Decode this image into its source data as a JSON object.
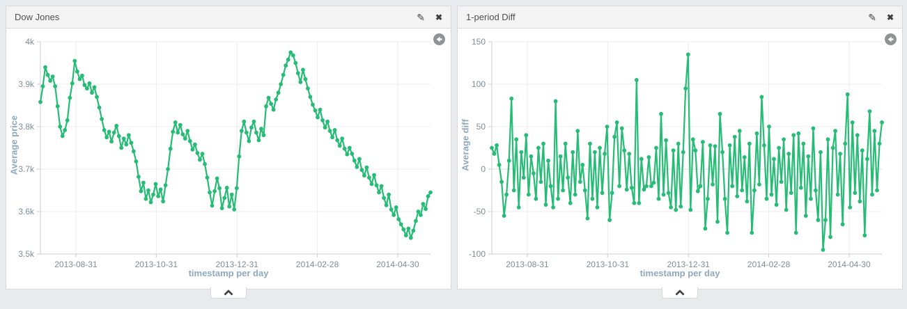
{
  "page": {
    "background": "#e8ebed"
  },
  "panels": [
    {
      "title": "Dow Jones"
    },
    {
      "title": "1-period Diff"
    }
  ],
  "icons": {
    "edit_glyph": "✎",
    "close_glyph": "✖"
  },
  "colors": {
    "line_green": "#26bc75",
    "grid": "#ececec",
    "axis": "#cccccc",
    "tick_text": "#7e8d98",
    "axis_title_text": "#8ea9bd"
  },
  "chart_data": [
    {
      "type": "line",
      "title": "Dow Jones",
      "xlabel": "timestamp per day",
      "ylabel": "Average price",
      "ylim": [
        3500,
        4000
      ],
      "grid": true,
      "y_ticks": [
        {
          "value": 4000,
          "label": "4k"
        },
        {
          "value": 3900,
          "label": "3.9k"
        },
        {
          "value": 3800,
          "label": "3.8k"
        },
        {
          "value": 3700,
          "label": "3.7k"
        },
        {
          "value": 3600,
          "label": "3.6k"
        },
        {
          "value": 3500,
          "label": "3.5k"
        }
      ],
      "x_ticks": [
        {
          "position": 0.091,
          "label": "2013-08-31"
        },
        {
          "position": 0.297,
          "label": "2013-10-31"
        },
        {
          "position": 0.504,
          "label": "2013-12-31"
        },
        {
          "position": 0.71,
          "label": "2014-02-28"
        },
        {
          "position": 0.916,
          "label": "2014-04-30"
        }
      ],
      "values": [
        3858,
        3895,
        3940,
        3922,
        3908,
        3918,
        3895,
        3848,
        3800,
        3778,
        3792,
        3815,
        3868,
        3902,
        3955,
        3930,
        3912,
        3920,
        3898,
        3890,
        3902,
        3880,
        3893,
        3870,
        3845,
        3818,
        3792,
        3775,
        3788,
        3765,
        3786,
        3802,
        3778,
        3750,
        3772,
        3758,
        3780,
        3762,
        3742,
        3718,
        3682,
        3648,
        3668,
        3630,
        3650,
        3622,
        3640,
        3665,
        3636,
        3652,
        3624,
        3662,
        3700,
        3748,
        3788,
        3810,
        3786,
        3804,
        3782,
        3772,
        3790,
        3766,
        3746,
        3758,
        3738,
        3722,
        3736,
        3712,
        3680,
        3645,
        3614,
        3648,
        3678,
        3655,
        3608,
        3632,
        3656,
        3612,
        3640,
        3605,
        3655,
        3730,
        3790,
        3812,
        3786,
        3766,
        3798,
        3812,
        3786,
        3768,
        3795,
        3780,
        3848,
        3868,
        3854,
        3840,
        3864,
        3880,
        3900,
        3922,
        3944,
        3958,
        3975,
        3968,
        3950,
        3926,
        3905,
        3934,
        3912,
        3890,
        3870,
        3852,
        3838,
        3822,
        3840,
        3815,
        3798,
        3812,
        3790,
        3775,
        3792,
        3768,
        3755,
        3772,
        3748,
        3735,
        3750,
        3736,
        3720,
        3705,
        3724,
        3698,
        3685,
        3704,
        3680,
        3665,
        3686,
        3662,
        3645,
        3660,
        3632,
        3615,
        3640,
        3605,
        3592,
        3610,
        3582,
        3570,
        3558,
        3544,
        3560,
        3538,
        3555,
        3578,
        3600,
        3592,
        3618,
        3606,
        3636,
        3645
      ]
    },
    {
      "type": "line",
      "title": "1-period Diff",
      "xlabel": "timestamp per day",
      "ylabel": "Average diff",
      "ylim": [
        -100,
        150
      ],
      "grid": true,
      "y_ticks": [
        {
          "value": 150,
          "label": "150"
        },
        {
          "value": 100,
          "label": "100"
        },
        {
          "value": 50,
          "label": "50"
        },
        {
          "value": 0,
          "label": "0"
        },
        {
          "value": -50,
          "label": "-50"
        },
        {
          "value": -100,
          "label": "-100"
        }
      ],
      "x_ticks": [
        {
          "position": 0.091,
          "label": "2013-08-31"
        },
        {
          "position": 0.297,
          "label": "2013-10-31"
        },
        {
          "position": 0.504,
          "label": "2013-12-31"
        },
        {
          "position": 0.71,
          "label": "2014-02-28"
        },
        {
          "position": 0.916,
          "label": "2014-04-30"
        }
      ],
      "values": [
        25,
        18,
        28,
        5,
        -15,
        -55,
        -30,
        10,
        83,
        -25,
        35,
        -45,
        20,
        -10,
        40,
        -30,
        15,
        -5,
        -35,
        25,
        -15,
        30,
        -42,
        10,
        -20,
        -45,
        80,
        -35,
        15,
        -25,
        30,
        -10,
        -40,
        20,
        -30,
        45,
        -15,
        5,
        -25,
        -58,
        30,
        -35,
        20,
        -45,
        25,
        -28,
        18,
        50,
        -60,
        -28,
        38,
        55,
        -20,
        48,
        22,
        -24,
        18,
        -22,
        -40,
        105,
        -40,
        12,
        -24,
        -20,
        14,
        -20,
        -16,
        25,
        -35,
        65,
        -30,
        34,
        -28,
        -45,
        22,
        -48,
        30,
        -44,
        20,
        95,
        135,
        -48,
        35,
        22,
        -26,
        -20,
        32,
        -70,
        -35,
        28,
        -18,
        27,
        -62,
        65,
        20,
        -35,
        -75,
        28,
        -20,
        38,
        -32,
        45,
        -25,
        14,
        -38,
        30,
        -75,
        -25,
        42,
        -18,
        85,
        28,
        -35,
        50,
        -30,
        12,
        -42,
        25,
        -15,
        35,
        -48,
        18,
        -28,
        40,
        -75,
        42,
        -22,
        30,
        -55,
        15,
        -35,
        48,
        -25,
        -60,
        20,
        -95,
        -60,
        35,
        -80,
        25,
        45,
        -30,
        18,
        -65,
        30,
        88,
        -45,
        55,
        -28,
        40,
        -38,
        22,
        -78,
        12,
        68,
        -30,
        45,
        -25,
        30,
        55
      ]
    }
  ]
}
